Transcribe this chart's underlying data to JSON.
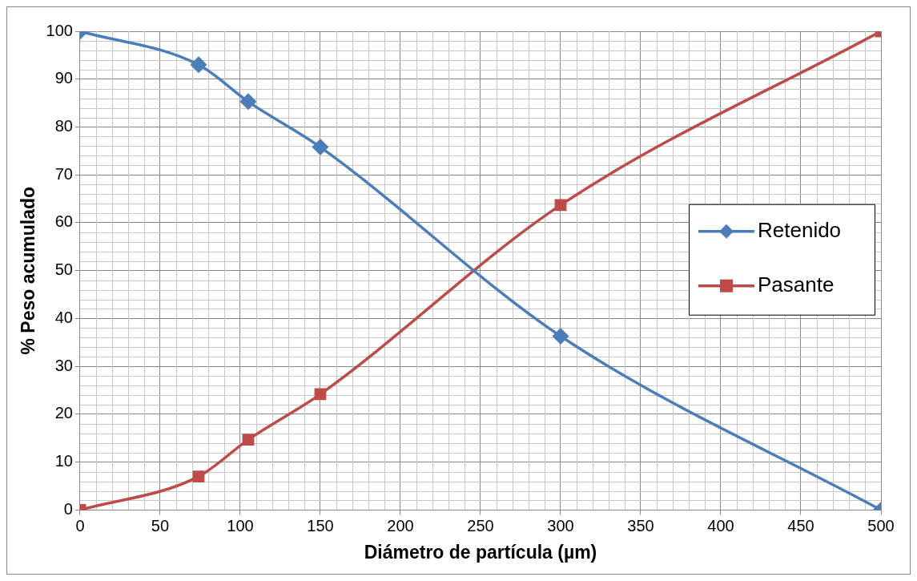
{
  "chart_data": {
    "type": "line",
    "xlabel": "Diámetro de partícula (µm)",
    "ylabel": "% Peso acumulado",
    "xlim": [
      0,
      500
    ],
    "xticks": [
      0,
      50,
      100,
      150,
      200,
      250,
      300,
      350,
      400,
      450,
      500
    ],
    "ylim": [
      0,
      100
    ],
    "yticks": [
      0,
      10,
      20,
      30,
      40,
      50,
      60,
      70,
      80,
      90,
      100
    ],
    "grid": true,
    "legend": "right",
    "line_style": "solid",
    "series": [
      {
        "name": "Retenido",
        "color": "#4a7ebb",
        "marker": "diamond",
        "x": [
          0,
          74,
          105,
          150,
          300,
          500
        ],
        "values": [
          100,
          93,
          85.3,
          75.8,
          36.3,
          0
        ]
      },
      {
        "name": "Pasante",
        "color": "#be4b48",
        "marker": "square",
        "x": [
          0,
          74,
          105,
          150,
          300,
          500
        ],
        "values": [
          0,
          7,
          14.7,
          24.2,
          63.7,
          100
        ]
      }
    ]
  }
}
